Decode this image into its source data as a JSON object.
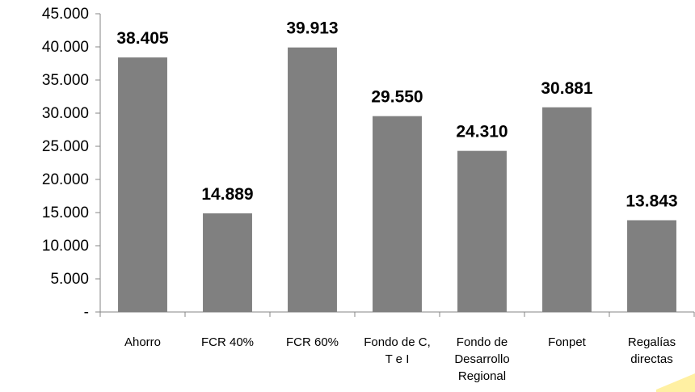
{
  "chart_data": {
    "type": "bar",
    "categories": [
      [
        "Ahorro"
      ],
      [
        "FCR 40%"
      ],
      [
        "FCR 60%"
      ],
      [
        "Fondo de C,",
        "T e I"
      ],
      [
        "Fondo de",
        "Desarrollo",
        "Regional"
      ],
      [
        "Fonpet"
      ],
      [
        "Regalías",
        "directas"
      ]
    ],
    "values": [
      38405,
      14889,
      39913,
      29550,
      24310,
      30881,
      13843
    ],
    "value_labels": [
      "38.405",
      "14.889",
      "39.913",
      "29.550",
      "24.310",
      "30.881",
      "13.843"
    ],
    "y_ticks": [
      0,
      5000,
      10000,
      15000,
      20000,
      25000,
      30000,
      35000,
      40000,
      45000
    ],
    "y_tick_labels": [
      "-",
      "5.000",
      "10.000",
      "15.000",
      "20.000",
      "25.000",
      "30.000",
      "35.000",
      "40.000",
      "45.000"
    ],
    "ylim": [
      0,
      45000
    ],
    "grid": false,
    "legend": "none",
    "colors": {
      "bar": "#808080",
      "axis": "#868686",
      "corner_accent": "#ffe97a"
    }
  }
}
